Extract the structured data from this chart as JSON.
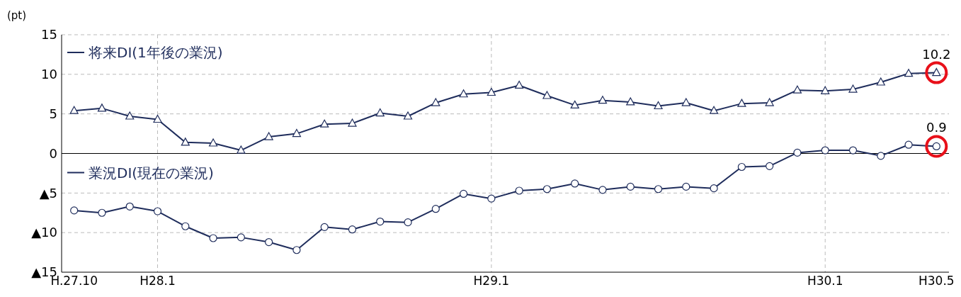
{
  "chart_data": {
    "type": "line",
    "ylabel": "(pt)",
    "categories": [
      "H.27.10",
      null,
      null,
      "H28.1",
      null,
      null,
      null,
      null,
      null,
      null,
      null,
      null,
      null,
      null,
      null,
      "H29.1",
      null,
      null,
      null,
      null,
      null,
      null,
      null,
      null,
      null,
      null,
      null,
      "H30.1",
      null,
      null,
      null,
      "H30.5"
    ],
    "series": [
      {
        "name": "将来DI(1年後の業況)",
        "color": "#1f2d5c",
        "marker": "triangle",
        "values": [
          5.4,
          5.7,
          4.7,
          4.3,
          1.4,
          1.3,
          0.4,
          2.1,
          2.5,
          3.7,
          3.8,
          5.1,
          4.7,
          6.4,
          7.5,
          7.7,
          8.6,
          7.3,
          6.1,
          6.7,
          6.5,
          6.0,
          6.4,
          5.4,
          6.3,
          6.4,
          8.0,
          7.9,
          8.1,
          9.0,
          10.1,
          10.2
        ],
        "value_labels": [
          null,
          null,
          null,
          null,
          null,
          null,
          null,
          null,
          null,
          null,
          null,
          null,
          null,
          null,
          null,
          null,
          null,
          null,
          null,
          null,
          null,
          null,
          null,
          null,
          null,
          null,
          null,
          null,
          null,
          null,
          null,
          "10.2"
        ]
      },
      {
        "name": "業況DI(現在の業況)",
        "color": "#1f2d5c",
        "marker": "circle",
        "values": [
          -7.2,
          -7.5,
          -6.7,
          -7.3,
          -9.2,
          -10.7,
          -10.6,
          -11.2,
          -12.2,
          -9.3,
          -9.6,
          -8.6,
          -8.7,
          -7.0,
          -5.1,
          -5.7,
          -4.7,
          -4.5,
          -3.8,
          -4.6,
          -4.2,
          -4.5,
          -4.2,
          -4.4,
          -1.7,
          -1.6,
          0.1,
          0.4,
          0.4,
          -0.3,
          1.1,
          0.9
        ],
        "value_labels": [
          null,
          null,
          null,
          null,
          null,
          null,
          null,
          null,
          null,
          null,
          null,
          null,
          null,
          null,
          null,
          null,
          null,
          null,
          null,
          null,
          null,
          null,
          null,
          null,
          null,
          null,
          null,
          null,
          null,
          null,
          null,
          "0.9"
        ]
      }
    ],
    "ylim": [
      -15,
      15
    ],
    "yticks": [
      15,
      10,
      5,
      0,
      {
        "value": -5,
        "label": "▲5"
      },
      {
        "value": -10,
        "label": "▲10"
      },
      {
        "value": -15,
        "label": "▲15"
      }
    ],
    "grid": true,
    "legend": "top left"
  }
}
